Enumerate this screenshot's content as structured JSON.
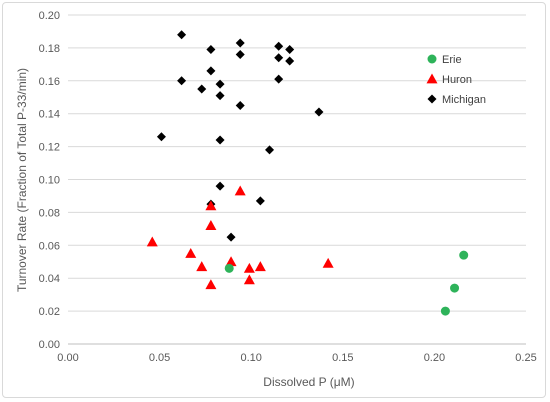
{
  "chart_data": {
    "type": "scatter",
    "title": "",
    "xlabel": "Dissolved P (μM)",
    "ylabel": "Turnover Rate (Fraction of Total P-33/min)",
    "xlim": [
      0,
      0.25
    ],
    "ylim": [
      0,
      0.2
    ],
    "x_ticks": [
      "0.00",
      "0.05",
      "0.10",
      "0.15",
      "0.20",
      "0.25"
    ],
    "y_ticks": [
      "0.00",
      "0.02",
      "0.04",
      "0.06",
      "0.08",
      "0.10",
      "0.12",
      "0.14",
      "0.16",
      "0.18",
      "0.20"
    ],
    "grid": "horizontal",
    "legend_position": "upper-right",
    "series": [
      {
        "name": "Erie",
        "marker": "circle",
        "color": "#2eb35a",
        "points": [
          [
            0.088,
            0.046
          ],
          [
            0.206,
            0.02
          ],
          [
            0.211,
            0.034
          ],
          [
            0.216,
            0.054
          ]
        ]
      },
      {
        "name": "Huron",
        "marker": "triangle",
        "color": "#ff0000",
        "points": [
          [
            0.046,
            0.062
          ],
          [
            0.067,
            0.055
          ],
          [
            0.073,
            0.047
          ],
          [
            0.078,
            0.036
          ],
          [
            0.078,
            0.072
          ],
          [
            0.078,
            0.084
          ],
          [
            0.089,
            0.05
          ],
          [
            0.094,
            0.093
          ],
          [
            0.099,
            0.046
          ],
          [
            0.099,
            0.039
          ],
          [
            0.105,
            0.047
          ],
          [
            0.142,
            0.049
          ]
        ]
      },
      {
        "name": "Michigan",
        "marker": "diamond",
        "color": "#000000",
        "points": [
          [
            0.051,
            0.126
          ],
          [
            0.062,
            0.188
          ],
          [
            0.062,
            0.16
          ],
          [
            0.073,
            0.155
          ],
          [
            0.078,
            0.179
          ],
          [
            0.078,
            0.166
          ],
          [
            0.083,
            0.158
          ],
          [
            0.083,
            0.151
          ],
          [
            0.094,
            0.183
          ],
          [
            0.094,
            0.176
          ],
          [
            0.094,
            0.145
          ],
          [
            0.083,
            0.124
          ],
          [
            0.083,
            0.096
          ],
          [
            0.078,
            0.085
          ],
          [
            0.089,
            0.065
          ],
          [
            0.105,
            0.087
          ],
          [
            0.11,
            0.118
          ],
          [
            0.115,
            0.181
          ],
          [
            0.121,
            0.179
          ],
          [
            0.115,
            0.174
          ],
          [
            0.121,
            0.172
          ],
          [
            0.115,
            0.161
          ],
          [
            0.137,
            0.141
          ]
        ]
      }
    ]
  }
}
